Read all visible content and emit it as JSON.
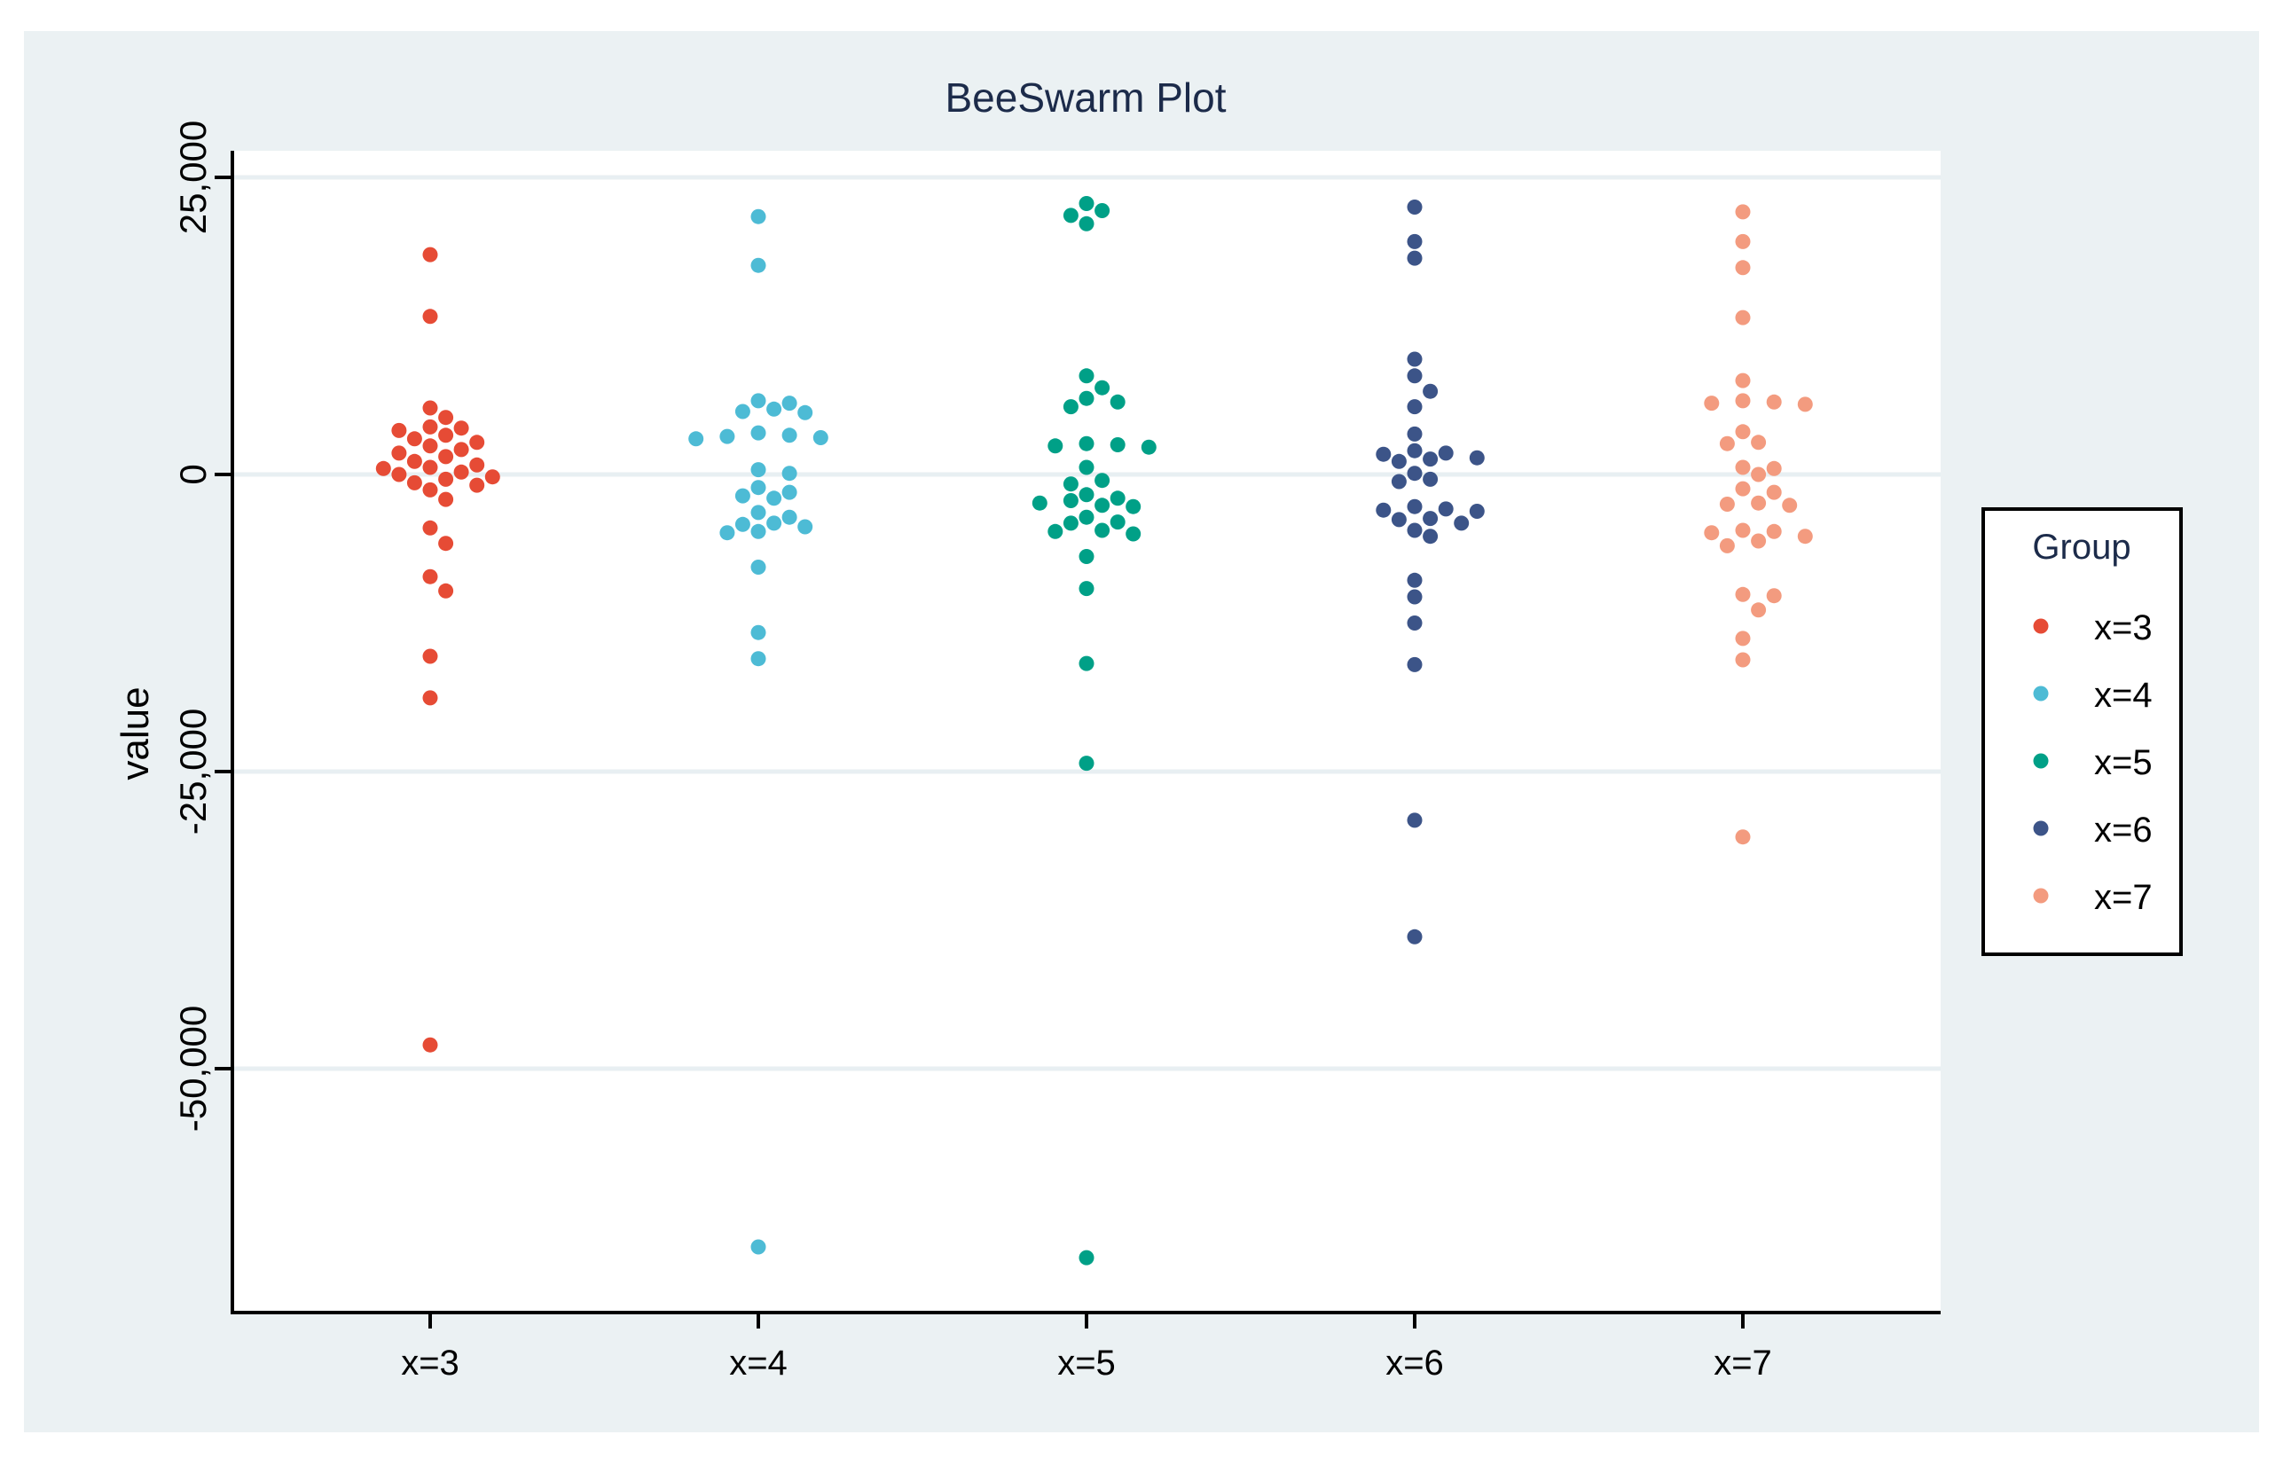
{
  "chart_data": {
    "type": "scatter",
    "subtype": "beeswarm",
    "title": "BeeSwarm Plot",
    "xlabel": "",
    "ylabel": "value",
    "categories": [
      "x=3",
      "x=4",
      "x=5",
      "x=6",
      "x=7"
    ],
    "ylim": [
      -70000,
      27500
    ],
    "yticks": [
      25000,
      0,
      -25000,
      -50000
    ],
    "ytick_labels": [
      "25,000",
      "0",
      "-25,000",
      "-50,000"
    ],
    "grid": true,
    "legend": {
      "title": "Group",
      "placement": "right"
    },
    "series": [
      {
        "name": "x=3",
        "color": "#e64b35",
        "values": [
          18500,
          13300,
          5600,
          4800,
          4000,
          3900,
          3700,
          3300,
          3000,
          2700,
          2400,
          2100,
          1800,
          1500,
          1100,
          800,
          600,
          500,
          200,
          0,
          -200,
          -400,
          -700,
          -900,
          -1300,
          -2100,
          -4500,
          -5800,
          -8600,
          -9800,
          -15300,
          -18800,
          -48000
        ]
      },
      {
        "name": "x=4",
        "color": "#4dbbd5",
        "values": [
          21700,
          17600,
          6200,
          6000,
          5500,
          5300,
          5200,
          3500,
          3300,
          3200,
          3100,
          3000,
          400,
          100,
          -1100,
          -1500,
          -1800,
          -2000,
          -3200,
          -3600,
          -4100,
          -4200,
          -4400,
          -4800,
          -4900,
          -7800,
          -13300,
          -15500,
          -65000
        ]
      },
      {
        "name": "x=5",
        "color": "#00a087",
        "values": [
          22800,
          22200,
          21800,
          21100,
          8300,
          7300,
          6400,
          6100,
          5700,
          2600,
          2500,
          2400,
          2300,
          600,
          -500,
          -800,
          -1700,
          -2000,
          -2200,
          -2400,
          -2600,
          -2700,
          -3600,
          -4000,
          -4100,
          -4700,
          -4800,
          -5000,
          -6900,
          -9600,
          -15900,
          -24300,
          -65900
        ]
      },
      {
        "name": "x=6",
        "color": "#3c5488",
        "values": [
          22500,
          19600,
          18200,
          9700,
          8300,
          7000,
          5700,
          3400,
          2000,
          1800,
          1700,
          1400,
          1300,
          1100,
          100,
          -400,
          -600,
          -2700,
          -2900,
          -3000,
          -3100,
          -3700,
          -3800,
          -4100,
          -4700,
          -5200,
          -8900,
          -10300,
          -12500,
          -16000,
          -29100,
          -38900
        ]
      },
      {
        "name": "x=7",
        "color": "#f39b7f",
        "values": [
          22100,
          19600,
          17400,
          13200,
          7900,
          6200,
          6100,
          6000,
          5900,
          3600,
          2700,
          2600,
          600,
          500,
          0,
          -1200,
          -1500,
          -2400,
          -2500,
          -2600,
          -4700,
          -4800,
          -4900,
          -5200,
          -5600,
          -6000,
          -10100,
          -10200,
          -11400,
          -13800,
          -15600,
          -30500
        ]
      }
    ]
  }
}
